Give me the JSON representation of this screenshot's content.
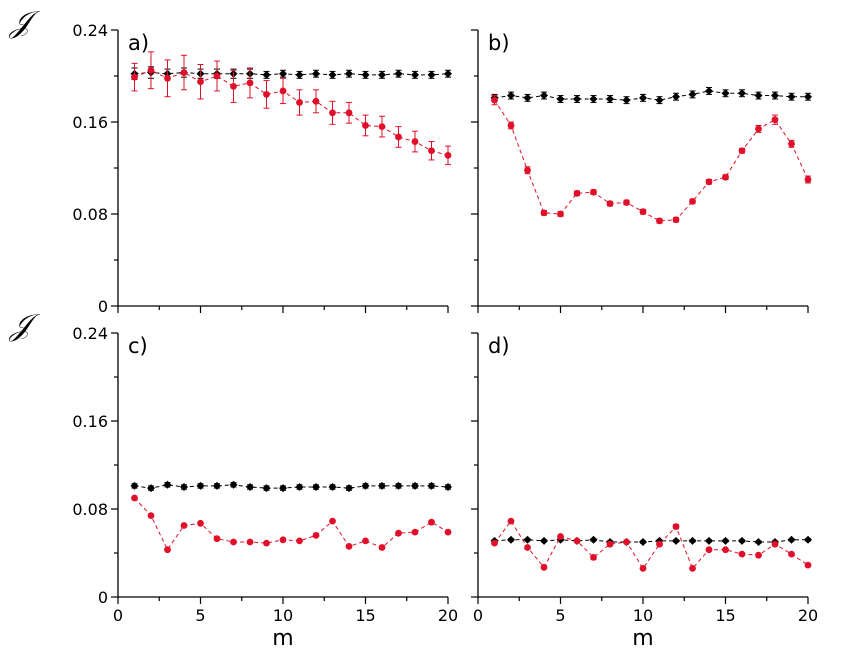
{
  "colors": {
    "series_red": "#e0102a",
    "series_black": "#000000",
    "axis": "#000000"
  },
  "chart_data": [
    {
      "type": "scatter",
      "panel_label": "a)",
      "ylabel": "𝒥",
      "xlabel": "",
      "xlim": [
        0,
        20
      ],
      "ylim": [
        0,
        0.24
      ],
      "yticks": [
        "0",
        "0.08",
        "0.16",
        "0.24"
      ],
      "xticks": [],
      "x": [
        1,
        2,
        3,
        4,
        5,
        6,
        7,
        8,
        9,
        10,
        11,
        12,
        13,
        14,
        15,
        16,
        17,
        18,
        19,
        20
      ],
      "series": [
        {
          "name": "black",
          "values": [
            0.202,
            0.203,
            0.202,
            0.203,
            0.202,
            0.202,
            0.202,
            0.202,
            0.201,
            0.202,
            0.201,
            0.202,
            0.201,
            0.202,
            0.201,
            0.201,
            0.202,
            0.201,
            0.201,
            0.202
          ],
          "errors": [
            0.005,
            0.005,
            0.004,
            0.004,
            0.004,
            0.004,
            0.004,
            0.004,
            0.003,
            0.003,
            0.003,
            0.003,
            0.003,
            0.003,
            0.003,
            0.003,
            0.003,
            0.003,
            0.003,
            0.003
          ]
        },
        {
          "name": "red",
          "values": [
            0.199,
            0.205,
            0.198,
            0.203,
            0.195,
            0.2,
            0.191,
            0.194,
            0.184,
            0.187,
            0.177,
            0.178,
            0.168,
            0.168,
            0.157,
            0.156,
            0.147,
            0.143,
            0.135,
            0.131
          ],
          "errors": [
            0.012,
            0.016,
            0.016,
            0.015,
            0.015,
            0.013,
            0.014,
            0.013,
            0.012,
            0.011,
            0.011,
            0.01,
            0.01,
            0.009,
            0.009,
            0.009,
            0.009,
            0.009,
            0.008,
            0.008
          ]
        }
      ]
    },
    {
      "type": "scatter",
      "panel_label": "b)",
      "ylabel": "",
      "xlabel": "",
      "xlim": [
        0,
        20
      ],
      "ylim": [
        0,
        0.24
      ],
      "yticks": [],
      "xticks": [],
      "x": [
        1,
        2,
        3,
        4,
        5,
        6,
        7,
        8,
        9,
        10,
        11,
        12,
        13,
        14,
        15,
        16,
        17,
        18,
        19,
        20
      ],
      "series": [
        {
          "name": "black",
          "values": [
            0.181,
            0.183,
            0.181,
            0.183,
            0.18,
            0.18,
            0.18,
            0.18,
            0.179,
            0.181,
            0.179,
            0.182,
            0.184,
            0.187,
            0.185,
            0.185,
            0.183,
            0.183,
            0.182,
            0.182
          ],
          "errors": [
            0.003,
            0.003,
            0.003,
            0.003,
            0.003,
            0.003,
            0.003,
            0.003,
            0.003,
            0.003,
            0.003,
            0.003,
            0.003,
            0.003,
            0.003,
            0.003,
            0.003,
            0.003,
            0.003,
            0.003
          ]
        },
        {
          "name": "red",
          "values": [
            0.179,
            0.157,
            0.118,
            0.081,
            0.08,
            0.098,
            0.099,
            0.089,
            0.09,
            0.082,
            0.074,
            0.075,
            0.091,
            0.108,
            0.112,
            0.135,
            0.154,
            0.162,
            0.141,
            0.11
          ],
          "errors": [
            0.004,
            0.003,
            0.003,
            0.002,
            0.002,
            0.002,
            0.002,
            0.002,
            0.002,
            0.002,
            0.002,
            0.002,
            0.002,
            0.002,
            0.002,
            0.002,
            0.003,
            0.004,
            0.003,
            0.003
          ]
        }
      ]
    },
    {
      "type": "scatter",
      "panel_label": "c)",
      "ylabel": "𝒥",
      "xlabel": "m",
      "xlim": [
        0,
        20
      ],
      "ylim": [
        0,
        0.24
      ],
      "yticks": [
        "0",
        "0.08",
        "0.16",
        "0.24"
      ],
      "xticks": [
        "0",
        "5",
        "10",
        "15",
        "20"
      ],
      "x": [
        1,
        2,
        3,
        4,
        5,
        6,
        7,
        8,
        9,
        10,
        11,
        12,
        13,
        14,
        15,
        16,
        17,
        18,
        19,
        20
      ],
      "series": [
        {
          "name": "black",
          "values": [
            0.101,
            0.099,
            0.102,
            0.1,
            0.101,
            0.101,
            0.102,
            0.1,
            0.099,
            0.099,
            0.1,
            0.1,
            0.1,
            0.099,
            0.101,
            0.101,
            0.101,
            0.101,
            0.101,
            0.1
          ],
          "errors": [
            0.002,
            0.002,
            0.002,
            0.002,
            0.002,
            0.002,
            0.002,
            0.002,
            0.002,
            0.002,
            0.002,
            0.002,
            0.002,
            0.002,
            0.002,
            0.002,
            0.002,
            0.002,
            0.002,
            0.002
          ]
        },
        {
          "name": "red",
          "values": [
            0.09,
            0.074,
            0.043,
            0.065,
            0.067,
            0.053,
            0.05,
            0.05,
            0.049,
            0.052,
            0.051,
            0.056,
            0.069,
            0.046,
            0.051,
            0.045,
            0.058,
            0.059,
            0.068,
            0.059
          ],
          "errors": [
            0.001,
            0.001,
            0.001,
            0.001,
            0.001,
            0.001,
            0.001,
            0.001,
            0.001,
            0.001,
            0.001,
            0.001,
            0.001,
            0.001,
            0.001,
            0.001,
            0.001,
            0.001,
            0.001,
            0.001
          ]
        }
      ]
    },
    {
      "type": "scatter",
      "panel_label": "d)",
      "ylabel": "",
      "xlabel": "m",
      "xlim": [
        0,
        20
      ],
      "ylim": [
        0,
        0.24
      ],
      "yticks": [],
      "xticks": [
        "0",
        "5",
        "10",
        "15",
        "20"
      ],
      "x": [
        1,
        2,
        3,
        4,
        5,
        6,
        7,
        8,
        9,
        10,
        11,
        12,
        13,
        14,
        15,
        16,
        17,
        18,
        19,
        20
      ],
      "series": [
        {
          "name": "black",
          "values": [
            0.051,
            0.052,
            0.052,
            0.051,
            0.052,
            0.051,
            0.052,
            0.05,
            0.05,
            0.05,
            0.051,
            0.051,
            0.051,
            0.051,
            0.051,
            0.051,
            0.05,
            0.05,
            0.052,
            0.052
          ],
          "errors": [
            0.001,
            0.001,
            0.001,
            0.001,
            0.001,
            0.001,
            0.001,
            0.001,
            0.001,
            0.001,
            0.001,
            0.001,
            0.001,
            0.001,
            0.001,
            0.001,
            0.001,
            0.001,
            0.001,
            0.001
          ]
        },
        {
          "name": "red",
          "values": [
            0.049,
            0.069,
            0.045,
            0.027,
            0.055,
            0.051,
            0.036,
            0.048,
            0.05,
            0.026,
            0.048,
            0.064,
            0.026,
            0.043,
            0.043,
            0.039,
            0.038,
            0.048,
            0.039,
            0.029
          ],
          "errors": [
            0.001,
            0.001,
            0.001,
            0.001,
            0.001,
            0.001,
            0.002,
            0.001,
            0.001,
            0.001,
            0.001,
            0.002,
            0.001,
            0.001,
            0.001,
            0.001,
            0.001,
            0.001,
            0.001,
            0.001
          ]
        }
      ]
    }
  ]
}
